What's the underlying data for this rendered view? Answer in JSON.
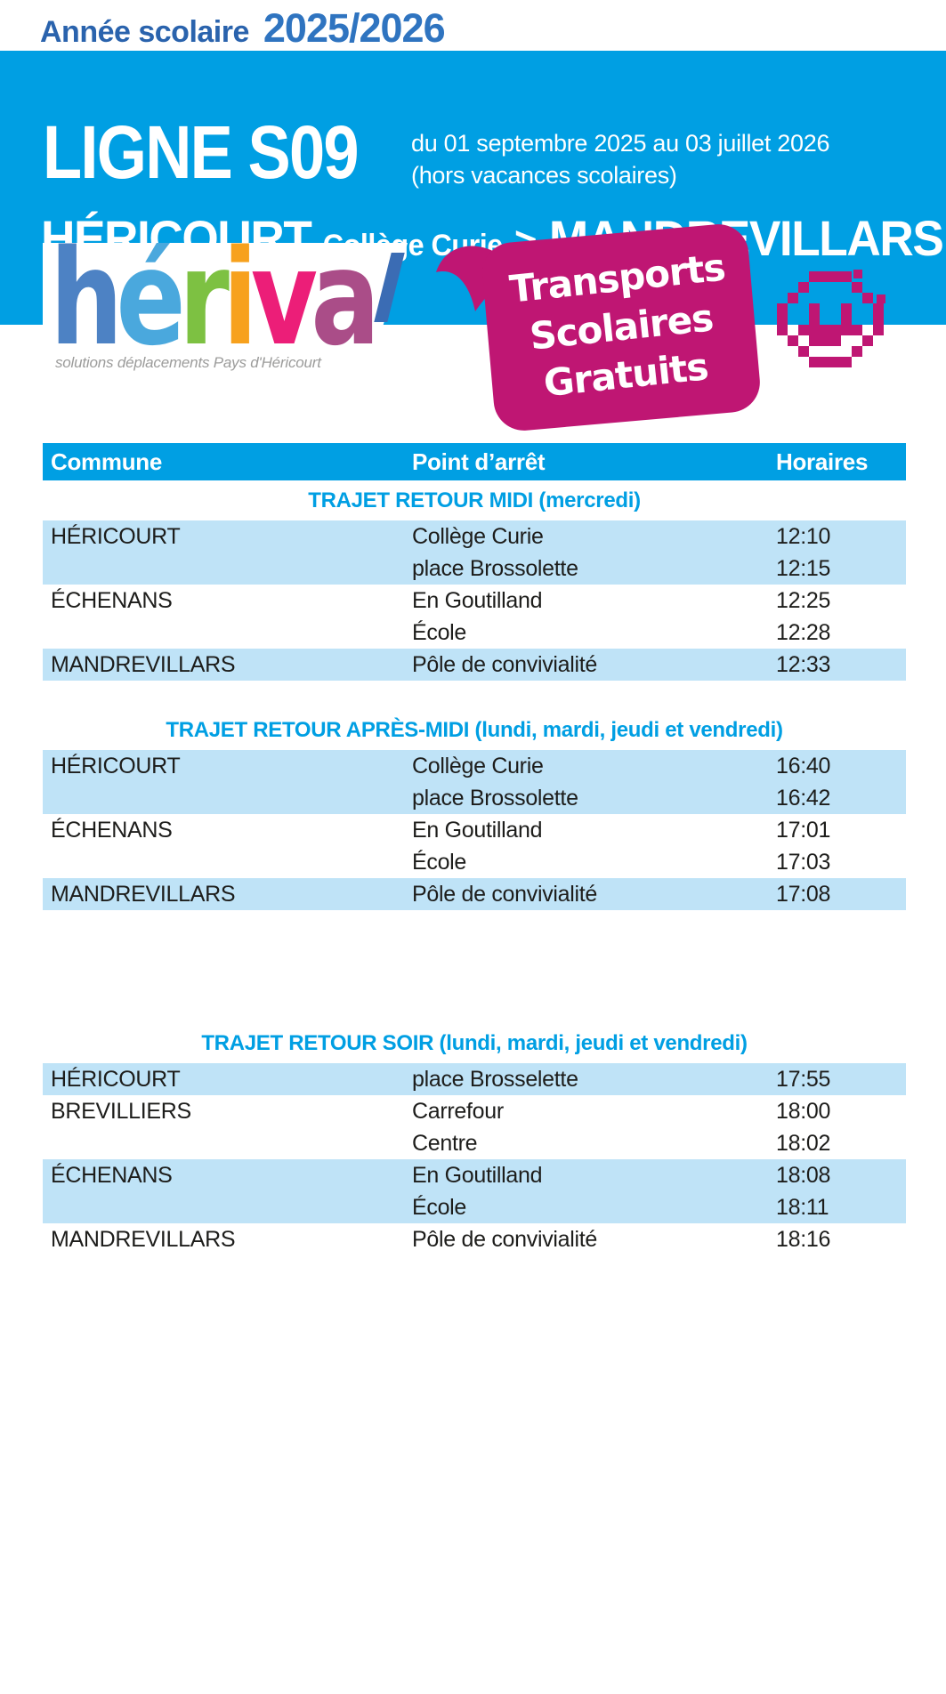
{
  "topbar": {
    "school_year_label": "Année scolaire",
    "school_year_value": "2025/2026"
  },
  "header": {
    "line_name": "LIGNE S09",
    "period_line1": "du 01 septembre 2025 au 03 juillet 2026",
    "period_line2": "(hors vacances scolaires)",
    "route_from": "HÉRICOURT",
    "route_from_detail": "Collège Curie",
    "route_arrow": ">",
    "route_to": "MANDREVILLARS"
  },
  "branding": {
    "logo_letters": [
      {
        "ch": "h",
        "color": "#4d82c4"
      },
      {
        "ch": "é",
        "color": "#4aa8dd"
      },
      {
        "ch": "r",
        "color": "#7dc142"
      },
      {
        "ch": "i",
        "color": "#f7a11d"
      },
      {
        "ch": "v",
        "color": "#ec1e78"
      },
      {
        "ch": "a",
        "color": "#aa4d88"
      }
    ],
    "logo_tagline": "solutions déplacements Pays d'Héricourt",
    "bubble": {
      "lines": [
        "Transports",
        "Scolaires",
        "Gratuits"
      ]
    }
  },
  "table": {
    "columns": [
      "Commune",
      "Point d’arrêt",
      "Horaires"
    ],
    "sections": [
      {
        "title": "TRAJET RETOUR MIDI (mercredi)",
        "rows": [
          {
            "commune": "HÉRICOURT",
            "stop": "Collège Curie",
            "time": "12:10",
            "shaded": true
          },
          {
            "commune": "",
            "stop": "place Brossolette",
            "time": "12:15",
            "shaded": true
          },
          {
            "commune": "ÉCHENANS",
            "stop": "En Goutilland",
            "time": "12:25",
            "shaded": false
          },
          {
            "commune": "",
            "stop": "École",
            "time": "12:28",
            "shaded": false
          },
          {
            "commune": "MANDREVILLARS",
            "stop": "Pôle de convivialité",
            "time": "12:33",
            "shaded": true
          }
        ]
      },
      {
        "title": "TRAJET RETOUR APRÈS-MIDI (lundi, mardi, jeudi et vendredi)",
        "rows": [
          {
            "commune": "HÉRICOURT",
            "stop": "Collège Curie",
            "time": "16:40",
            "shaded": true
          },
          {
            "commune": "",
            "stop": "place Brossolette",
            "time": "16:42",
            "shaded": true
          },
          {
            "commune": "ÉCHENANS",
            "stop": "En Goutilland",
            "time": "17:01",
            "shaded": false
          },
          {
            "commune": "",
            "stop": "École",
            "time": "17:03",
            "shaded": false
          },
          {
            "commune": "MANDREVILLARS",
            "stop": "Pôle de convivialité",
            "time": "17:08",
            "shaded": true
          }
        ]
      },
      {
        "title": "TRAJET RETOUR SOIR (lundi, mardi, jeudi et vendredi)",
        "rows": [
          {
            "commune": "HÉRICOURT",
            "stop": "place Brosselette",
            "time": "17:55",
            "shaded": true
          },
          {
            "commune": "BREVILLIERS",
            "stop": "Carrefour",
            "time": "18:00",
            "shaded": false
          },
          {
            "commune": "",
            "stop": "Centre",
            "time": "18:02",
            "shaded": false
          },
          {
            "commune": "ÉCHENANS",
            "stop": "En Goutilland",
            "time": "18:08",
            "shaded": true
          },
          {
            "commune": "",
            "stop": "École",
            "time": "18:11",
            "shaded": true
          },
          {
            "commune": "MANDREVILLARS",
            "stop": "Pôle de convivialité",
            "time": "18:16",
            "shaded": false
          }
        ]
      }
    ]
  },
  "colors": {
    "band_blue": "#009fe3",
    "row_light_blue": "#bfe3f7",
    "magenta": "#bf1673",
    "year_label_blue": "#2a63ad",
    "year_value_blue": "#2f74c0",
    "tagline_gray": "#9c9c9b",
    "text_ink": "#1d1d1b"
  }
}
